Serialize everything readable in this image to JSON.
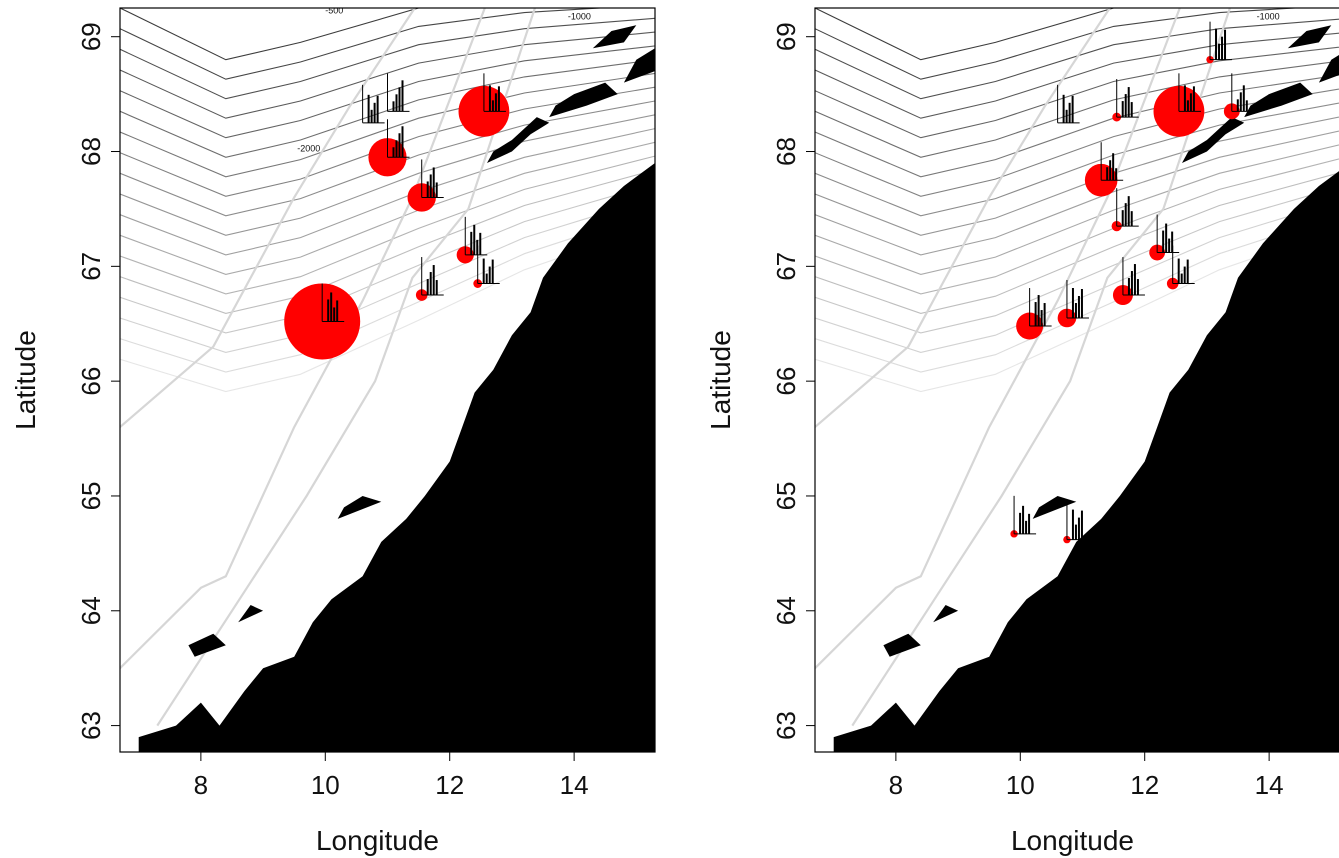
{
  "panels": [
    {
      "id": "left",
      "xlabel": "Longitude",
      "ylabel": "Latitude",
      "xticks": [
        "8",
        "10",
        "12",
        "14"
      ],
      "yticks": [
        "63",
        "64",
        "65",
        "66",
        "67",
        "68",
        "69"
      ],
      "contour_labels": [
        "-2000",
        "-1000",
        "-500"
      ],
      "stations": [
        {
          "lon": 9.95,
          "lat": 66.52,
          "size": 5
        },
        {
          "lon": 12.55,
          "lat": 68.35,
          "size": 3.2
        },
        {
          "lon": 11.0,
          "lat": 67.95,
          "size": 2.3
        },
        {
          "lon": 11.55,
          "lat": 67.6,
          "size": 1.6
        },
        {
          "lon": 12.25,
          "lat": 67.1,
          "size": 0.8
        },
        {
          "lon": 11.55,
          "lat": 66.75,
          "size": 0.4
        },
        {
          "lon": 12.45,
          "lat": 66.85,
          "size": 0.2
        },
        {
          "lon": 10.6,
          "lat": 68.25,
          "size": 0
        },
        {
          "lon": 11.0,
          "lat": 68.35,
          "size": 0
        }
      ]
    },
    {
      "id": "right",
      "xlabel": "Longitude",
      "ylabel": "Latitude",
      "xticks": [
        "8",
        "10",
        "12",
        "14"
      ],
      "yticks": [
        "63",
        "64",
        "65",
        "66",
        "67",
        "68",
        "69"
      ],
      "contour_labels": [
        "-1000"
      ],
      "stations": [
        {
          "lon": 12.55,
          "lat": 68.35,
          "size": 3.2
        },
        {
          "lon": 11.3,
          "lat": 67.75,
          "size": 1.9
        },
        {
          "lon": 10.15,
          "lat": 66.48,
          "size": 1.5
        },
        {
          "lon": 10.75,
          "lat": 66.55,
          "size": 0.9
        },
        {
          "lon": 11.65,
          "lat": 66.75,
          "size": 1.0
        },
        {
          "lon": 12.2,
          "lat": 67.12,
          "size": 0.7
        },
        {
          "lon": 13.4,
          "lat": 68.35,
          "size": 0.7
        },
        {
          "lon": 12.45,
          "lat": 66.85,
          "size": 0.4
        },
        {
          "lon": 11.55,
          "lat": 67.35,
          "size": 0.3
        },
        {
          "lon": 11.55,
          "lat": 68.3,
          "size": 0.2
        },
        {
          "lon": 13.05,
          "lat": 68.8,
          "size": 0.1
        },
        {
          "lon": 10.6,
          "lat": 68.25,
          "size": 0
        },
        {
          "lon": 9.9,
          "lat": 64.67,
          "size": 0.1
        },
        {
          "lon": 10.75,
          "lat": 64.62,
          "size": 0.1
        }
      ]
    }
  ],
  "colors": {
    "station_fill": "#ff0000",
    "land": "#000000",
    "contour_dark": "#555555",
    "contour_light": "#bbbbbb"
  }
}
